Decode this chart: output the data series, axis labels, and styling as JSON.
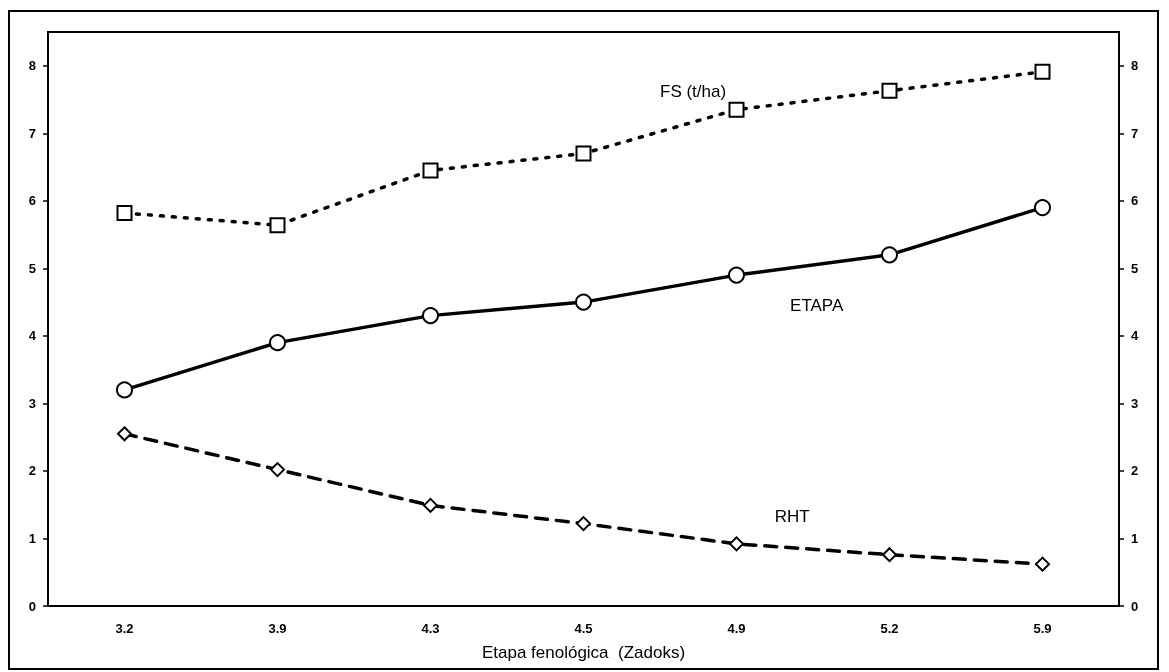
{
  "chart_data": {
    "type": "line",
    "xlabel": "Etapa fenológica  (Zadoks)",
    "categories": [
      "3.2",
      "3.9",
      "4.3",
      "4.5",
      "4.9",
      "5.2",
      "5.9"
    ],
    "series": [
      {
        "name": "FS (t/ha)",
        "color": "#000000",
        "marker": "square",
        "line_style": "dotted",
        "values": [
          5.82,
          5.64,
          6.45,
          6.7,
          7.35,
          7.63,
          7.91
        ]
      },
      {
        "name": "ETAPA",
        "color": "#000000",
        "marker": "circle",
        "line_style": "solid",
        "values": [
          3.2,
          3.9,
          4.3,
          4.5,
          4.9,
          5.2,
          5.9
        ]
      },
      {
        "name": "RHT",
        "color": "#000000",
        "marker": "diamond",
        "line_style": "dashed",
        "values": [
          2.55,
          2.02,
          1.49,
          1.22,
          0.92,
          0.76,
          0.62
        ]
      }
    ],
    "ylim": [
      0,
      8.5
    ],
    "yticks": [
      0,
      1,
      2,
      3,
      4,
      5,
      6,
      7,
      8
    ],
    "y2lim": [
      0,
      8.5
    ],
    "y2ticks": [
      0,
      1,
      2,
      3,
      4,
      5,
      6,
      7,
      8
    ],
    "grid": false,
    "legend": false
  }
}
